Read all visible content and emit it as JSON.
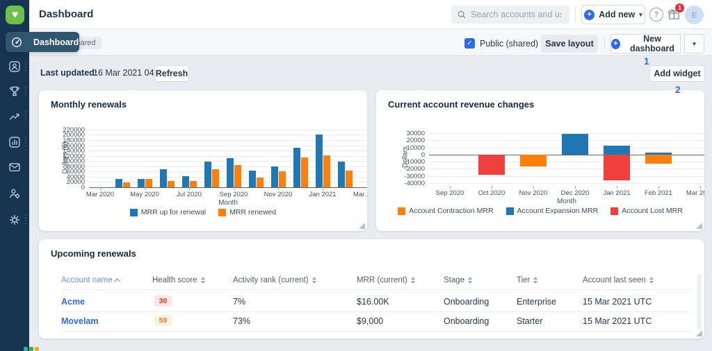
{
  "header": {
    "title": "Dashboard",
    "search_placeholder": "Search accounts and users",
    "add_new": "Add new",
    "notification_badge": "1",
    "avatar_initial": "E"
  },
  "sidebar": {
    "icons": [
      "dashboard",
      "accounts",
      "success-trophy",
      "trends-line",
      "reports-bar",
      "conversations-envelope",
      "team-user-gear",
      "settings-gear"
    ],
    "bottom_dot_colors": [
      "#27b4a5",
      "#3fae4e",
      "#e5b21e"
    ]
  },
  "nav_tooltip": {
    "label": "Dashboard"
  },
  "toolbar": {
    "dashboard_name_visible": "vals",
    "shared_badge": "Shared",
    "public_checkbox_label": "Public (shared)",
    "save_layout": "Save layout",
    "new_dashboard": "New dashboard"
  },
  "annotations": {
    "step1": "1",
    "step2": "2"
  },
  "meta_row": {
    "last_updated_label": "Last updated:",
    "last_updated_value": "16 Mar 2021 04:12",
    "refresh": "Refresh",
    "add_widget": "Add widget"
  },
  "chart_data": [
    {
      "type": "bar",
      "title": "Monthly renewals",
      "xlabel": "Month",
      "ylabel": "Dollars ($)",
      "ylim": [
        0,
        225000
      ],
      "yticks": [
        0,
        20000,
        40000,
        60000,
        80000,
        100000,
        120000,
        140000,
        160000,
        180000,
        200000,
        220000
      ],
      "categories": [
        "Mar 2020",
        "Apr 2020",
        "May 2020",
        "Jun 2020",
        "Jul 2020",
        "Aug 2020",
        "Sep 2020",
        "Oct 2020",
        "Nov 2020",
        "Dec 2020",
        "Jan 2021",
        "Feb 2021",
        "Mar 2021"
      ],
      "xticks": [
        "Mar 2020",
        "May 2020",
        "Jul 2020",
        "Sep 2020",
        "Nov 2020",
        "Jan 2021",
        "Mar 2021"
      ],
      "legend_position": "bottom",
      "series": [
        {
          "name": "MRR up for renewal",
          "color": "#1f77b4",
          "values": [
            0,
            32000,
            31000,
            70000,
            42000,
            97000,
            110000,
            64000,
            80000,
            152000,
            200000,
            98000,
            0
          ]
        },
        {
          "name": "MRR renewed",
          "color": "#ff7f0e",
          "values": [
            0,
            18000,
            32000,
            24000,
            23000,
            70000,
            85000,
            37000,
            62000,
            115000,
            121000,
            64000,
            0
          ]
        }
      ]
    },
    {
      "type": "bar",
      "title": "Current account revenue changes",
      "xlabel": "Month",
      "ylabel": "Dollars",
      "ylim": [
        -44000,
        36000
      ],
      "yticks": [
        -40000,
        -30000,
        -20000,
        -10000,
        0,
        10000,
        20000,
        30000
      ],
      "categories": [
        "Sep 2020",
        "Oct 2020",
        "Nov 2020",
        "Dec 2020",
        "Jan 2021",
        "Feb 2021",
        "Mar 2021"
      ],
      "xticks": [
        "Sep 2020",
        "Oct 2020",
        "Nov 2020",
        "Dec 2020",
        "Jan 2021",
        "Feb 2021",
        "Mar 2021"
      ],
      "legend_position": "bottom",
      "series": [
        {
          "name": "Account Contraction MRR",
          "color": "#ff7f0e",
          "values": [
            0,
            0,
            -17000,
            0,
            0,
            -13000,
            0
          ]
        },
        {
          "name": "Account Expansion MRR",
          "color": "#1f77b4",
          "values": [
            0,
            0,
            0,
            29000,
            12500,
            3000,
            0
          ]
        },
        {
          "name": "Account Lost MRR",
          "color": "#ef403d",
          "values": [
            0,
            -28000,
            0,
            0,
            -36000,
            0,
            0
          ]
        }
      ]
    }
  ],
  "table": {
    "title": "Upcoming renewals",
    "columns": [
      {
        "label": "Account name",
        "sort": "asc"
      },
      {
        "label": "Health score",
        "sort": "both"
      },
      {
        "label": "Activity rank (current)",
        "sort": "both"
      },
      {
        "label": "MRR (current)",
        "sort": "both"
      },
      {
        "label": "Stage",
        "sort": "both"
      },
      {
        "label": "Tier",
        "sort": "both"
      },
      {
        "label": "Account last seen",
        "sort": "both"
      }
    ],
    "rows": [
      {
        "account": "Acme",
        "health": "30",
        "health_color": "red",
        "activity": "7%",
        "mrr": "$16.00K",
        "stage": "Onboarding",
        "tier": "Enterprise",
        "last_seen": "15 Mar 2021 UTC"
      },
      {
        "account": "Movelam",
        "health": "59",
        "health_color": "orange",
        "activity": "73%",
        "mrr": "$9,000",
        "stage": "Onboarding",
        "tier": "Starter",
        "last_seen": "15 Mar 2021 UTC"
      }
    ]
  },
  "colors": {
    "accent_blue": "#2e6ae4",
    "sidebar_navy": "#173450",
    "logo_green": "#6fbf4b",
    "bar_blue": "#1f77b4",
    "bar_orange": "#ff7f0e",
    "bar_red": "#ef403d",
    "badge_red": "#e12d39"
  }
}
